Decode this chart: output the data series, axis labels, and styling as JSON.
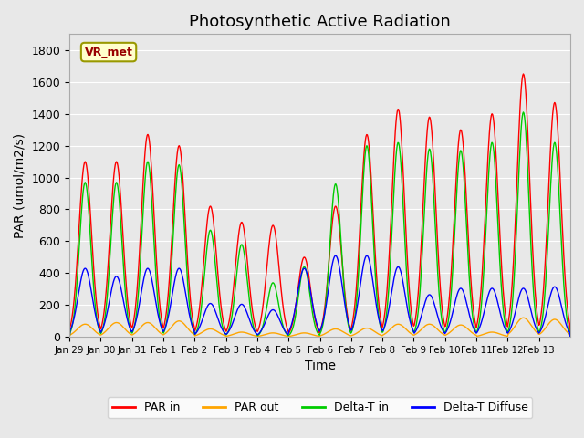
{
  "title": "Photosynthetic Active Radiation",
  "ylabel": "PAR (umol/m2/s)",
  "xlabel": "Time",
  "ylim": [
    0,
    1900
  ],
  "yticks": [
    0,
    200,
    400,
    600,
    800,
    1000,
    1200,
    1400,
    1600,
    1800
  ],
  "xtick_labels": [
    "Jan 29",
    "Jan 30",
    "Jan 31",
    "Feb 1",
    "Feb 2",
    "Feb 3",
    "Feb 4",
    "Feb 5",
    "Feb 6",
    "Feb 7",
    "Feb 8",
    "Feb 9",
    "Feb 10",
    "Feb 11",
    "Feb 12",
    "Feb 13"
  ],
  "watermark_text": "VR_met",
  "colors": {
    "par_in": "#ff0000",
    "par_out": "#ffa500",
    "delta_t_in": "#00cc00",
    "delta_t_diffuse": "#0000ff"
  },
  "legend_labels": [
    "PAR in",
    "PAR out",
    "Delta-T in",
    "Delta-T Diffuse"
  ],
  "bg_color": "#e8e8e8",
  "ax_bg_color": "#e8e8e8",
  "title_fontsize": 13,
  "label_fontsize": 10,
  "par_in_peaks": [
    1100,
    1100,
    1270,
    1200,
    820,
    720,
    700,
    500,
    820,
    1270,
    1430,
    1380,
    1300,
    1400,
    1650,
    1470
  ],
  "par_out_peaks": [
    80,
    90,
    90,
    100,
    50,
    30,
    25,
    25,
    50,
    55,
    80,
    80,
    75,
    30,
    120,
    110
  ],
  "delta_t_peaks": [
    970,
    970,
    1100,
    1080,
    670,
    580,
    340,
    440,
    960,
    1200,
    1220,
    1180,
    1170,
    1220,
    1410,
    1220
  ],
  "delta_d_peaks": [
    430,
    380,
    430,
    430,
    210,
    205,
    170,
    430,
    510,
    510,
    440,
    265,
    305,
    305,
    305,
    315
  ]
}
